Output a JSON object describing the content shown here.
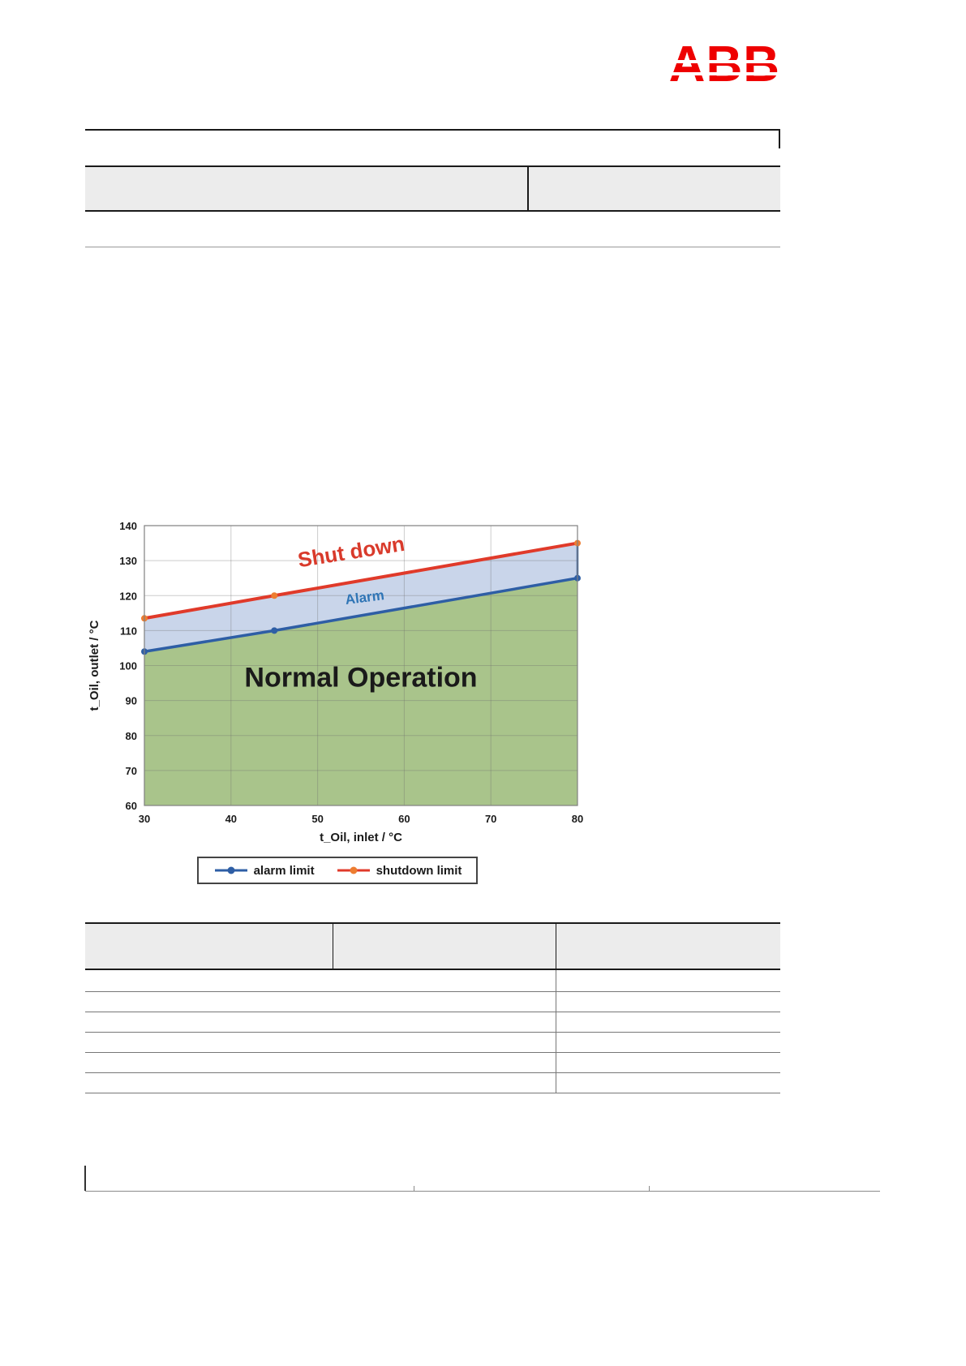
{
  "logo": {
    "text": "ABB"
  },
  "chart_data": {
    "type": "line",
    "x": [
      30,
      45,
      80
    ],
    "xlim": [
      30,
      80
    ],
    "ylim": [
      60,
      140
    ],
    "x_ticks": [
      30,
      40,
      50,
      60,
      70,
      80
    ],
    "y_ticks": [
      60,
      70,
      80,
      90,
      100,
      110,
      120,
      130,
      140
    ],
    "xlabel": "t_Oil, inlet / °C",
    "ylabel": "t_Oil, outlet / °C",
    "grid": true,
    "series": [
      {
        "name": "alarm limit",
        "values": [
          104,
          110,
          125
        ],
        "line_color": "#2e5ea5",
        "marker_color": "#2e5ea5",
        "width": 3.5
      },
      {
        "name": "shutdown limit",
        "values": [
          113.5,
          120,
          135
        ],
        "line_color": "#e03a2a",
        "marker_color": "#ed7d31",
        "width": 4
      }
    ],
    "regions": [
      {
        "name": "normal-operation",
        "between": [
          "ymin",
          "alarm limit"
        ],
        "fill": "#a9c48b"
      },
      {
        "name": "alarm-band",
        "between": [
          "alarm limit",
          "shutdown limit"
        ],
        "fill": "#c9d5ea"
      }
    ],
    "annotations": [
      {
        "text": "Shut down",
        "x": 54,
        "y": 130.5,
        "color": "#d93a2b",
        "size": 26,
        "weight": "bold",
        "rotate": -9
      },
      {
        "text": "Alarm",
        "x": 55.5,
        "y": 118.2,
        "color": "#2e74b5",
        "size": 17,
        "weight": "bold",
        "rotate": -7
      },
      {
        "text": "Normal Operation",
        "x": 55,
        "y": 94,
        "color": "#1a1a1a",
        "size": 34,
        "weight": "600",
        "rotate": 0
      }
    ],
    "legend": [
      {
        "label": "alarm limit",
        "line_color": "#2e5ea5",
        "marker_color": "#2e5ea5"
      },
      {
        "label": "shutdown limit",
        "line_color": "#e03a2a",
        "marker_color": "#ed7d31"
      }
    ],
    "legend_position": "bottom"
  }
}
